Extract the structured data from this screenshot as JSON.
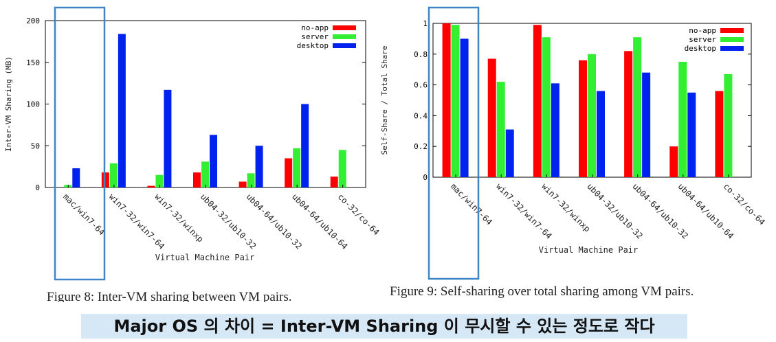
{
  "chart_data": [
    {
      "type": "bar",
      "caption": "Figure 8: Inter-VM sharing between VM pairs.",
      "xlabel": "Virtual Machine Pair",
      "ylabel": "Inter-VM Sharing (MB)",
      "ylim": [
        0,
        200
      ],
      "yticks": [
        "0",
        "50",
        "100",
        "150",
        "200"
      ],
      "legend_position": "top-right",
      "categories": [
        "mac/win7-64",
        "win7-32/win7-64",
        "win7-32/winxp",
        "ub04-32/ub10-32",
        "ub04-64/ub10-32",
        "ub04-64/ub10-64",
        "co-32/co-64"
      ],
      "series": [
        {
          "name": "no-app",
          "color": "#ff0000",
          "values": [
            0,
            18,
            2,
            18,
            7,
            35,
            13
          ]
        },
        {
          "name": "server",
          "color": "#33ee33",
          "values": [
            3,
            29,
            15,
            31,
            17,
            47,
            45
          ]
        },
        {
          "name": "desktop",
          "color": "#0022ee",
          "values": [
            23,
            184,
            117,
            63,
            50,
            100,
            null
          ]
        }
      ]
    },
    {
      "type": "bar",
      "caption": "Figure 9: Self-sharing over total sharing among VM pairs.",
      "xlabel": "Virtual Machine Pair",
      "ylabel": "Self-Share / Total Share",
      "ylim": [
        0,
        1
      ],
      "yticks": [
        "0",
        "0.2",
        "0.4",
        "0.6",
        "0.8",
        "1"
      ],
      "legend_position": "top-right",
      "categories": [
        "mac/win7-64",
        "win7-32/win7-64",
        "win7-32/winxp",
        "ub04-32/ub10-32",
        "ub04-64/ub10-32",
        "ub04-64/ub10-64",
        "co-32/co-64"
      ],
      "series": [
        {
          "name": "no-app",
          "color": "#ff0000",
          "values": [
            1.0,
            0.77,
            0.99,
            0.76,
            0.82,
            0.2,
            0.56
          ]
        },
        {
          "name": "server",
          "color": "#33ee33",
          "values": [
            0.99,
            0.62,
            0.91,
            0.8,
            0.91,
            0.75,
            0.67
          ]
        },
        {
          "name": "desktop",
          "color": "#0022ee",
          "values": [
            0.9,
            0.31,
            0.61,
            0.56,
            0.68,
            0.55,
            null
          ]
        }
      ]
    }
  ],
  "highlight_color": "#3d85c6",
  "banner": {
    "text": "Major OS 의 차이 = Inter-VM Sharing 이 무시할 수 있는 정도로 작다",
    "background": "#d6e8f6"
  }
}
